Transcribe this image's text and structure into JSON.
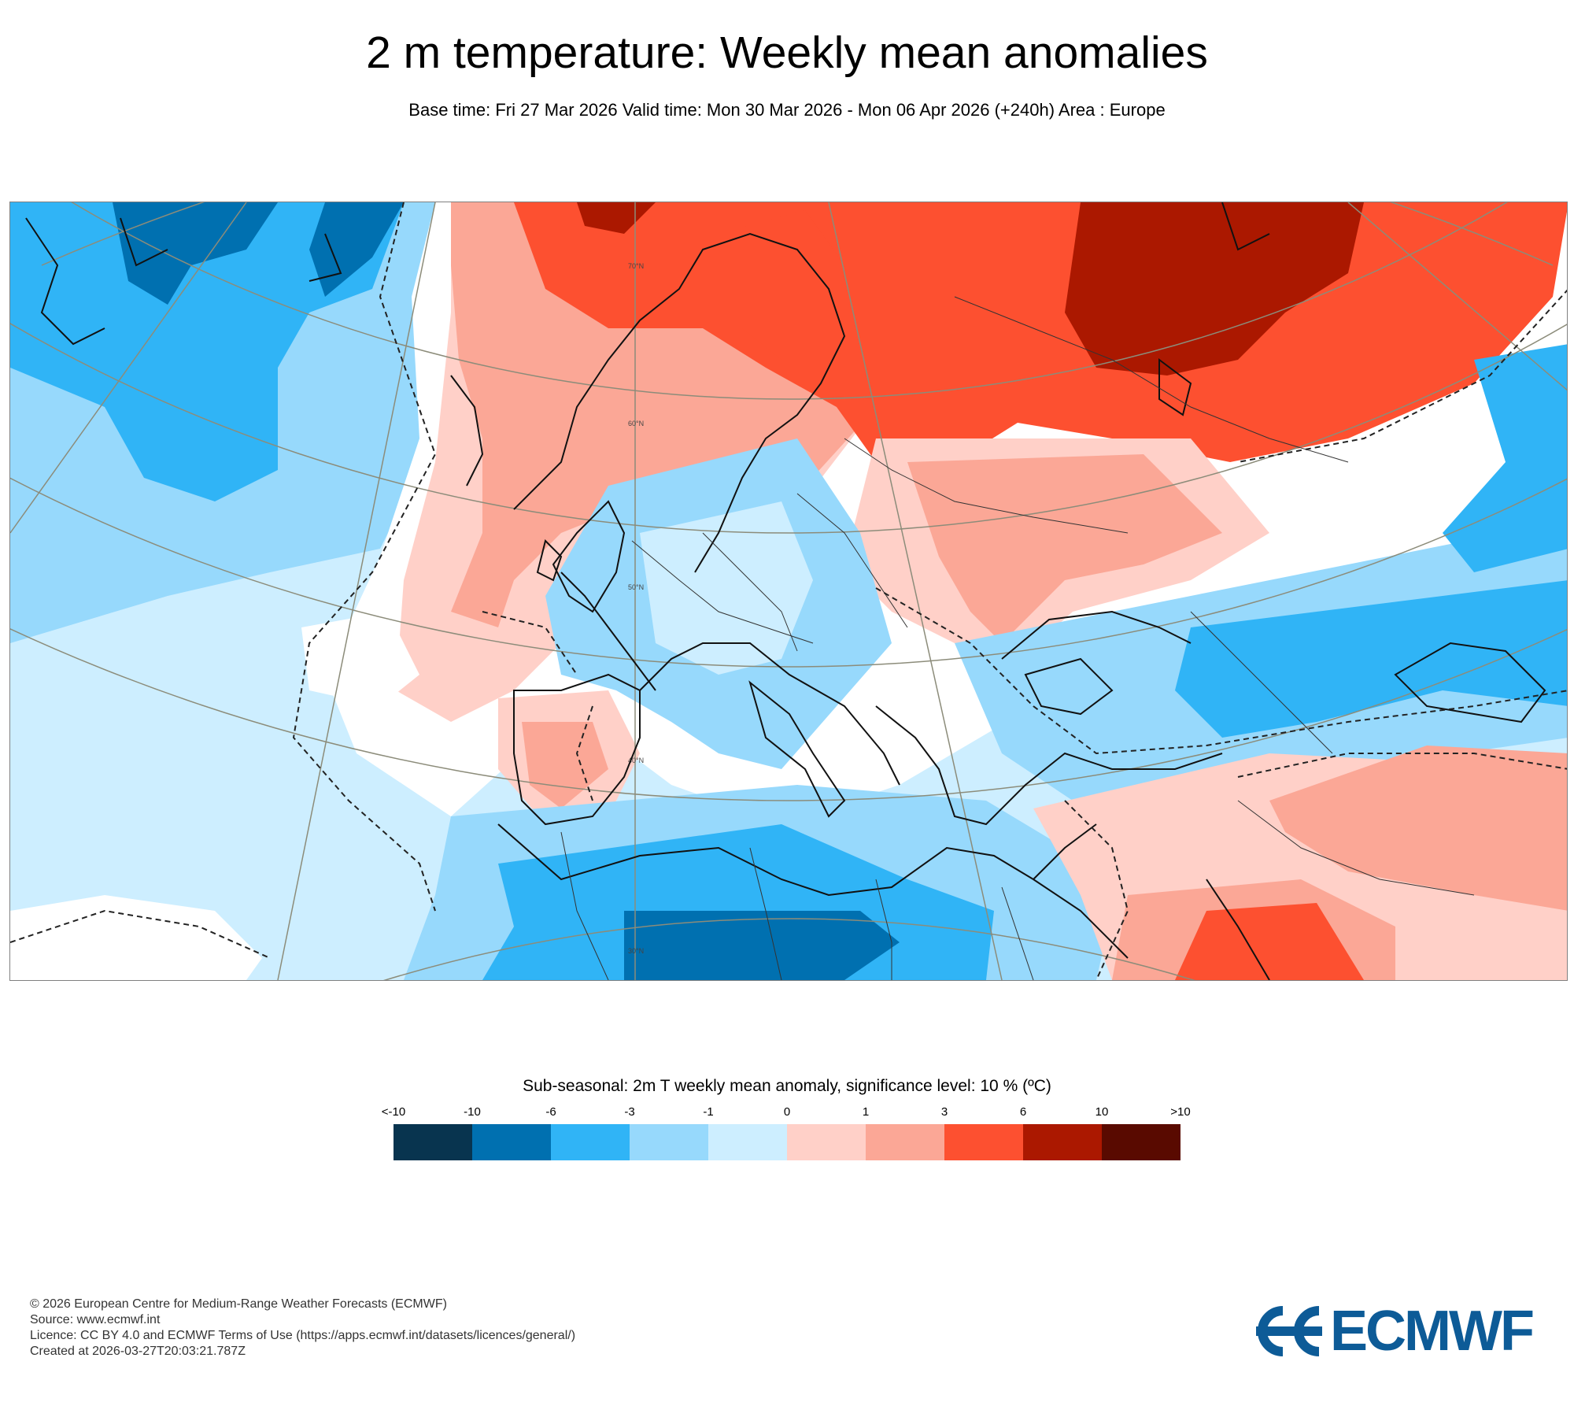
{
  "header": {
    "title": "2 m temperature: Weekly mean anomalies",
    "subtitle": "Base time: Fri 27 Mar 2026 Valid time: Mon 30 Mar 2026 - Mon 06 Apr 2026 (+240h) Area : Europe"
  },
  "map": {
    "region": "Europe",
    "latitude_labels": [
      "70°N",
      "60°N",
      "50°N",
      "40°N",
      "30°N"
    ]
  },
  "legend": {
    "title": "Sub-seasonal: 2m T weekly mean anomaly, significance level: 10 % (ºC)",
    "tick_labels": [
      "<-10",
      "-10",
      "-6",
      "-3",
      "-1",
      "0",
      "1",
      "3",
      "6",
      "10",
      ">10"
    ],
    "colors": [
      "#08344f",
      "#0070b0",
      "#30b4f6",
      "#97d9fc",
      "#cdeeff",
      "#ffd0c8",
      "#fba796",
      "#fd5030",
      "#ab1800",
      "#590a00"
    ]
  },
  "footer": {
    "copyright": "© 2026 European Centre for Medium-Range Weather Forecasts (ECMWF)",
    "source": "Source: www.ecmwf.int",
    "licence": "Licence: CC BY 4.0 and ECMWF Terms of Use (https://apps.ecmwf.int/datasets/licences/general/)",
    "created": "Created at 2026-03-27T20:03:21.787Z"
  },
  "logo": {
    "text": "ECMWF",
    "color": "#0d5b97"
  }
}
